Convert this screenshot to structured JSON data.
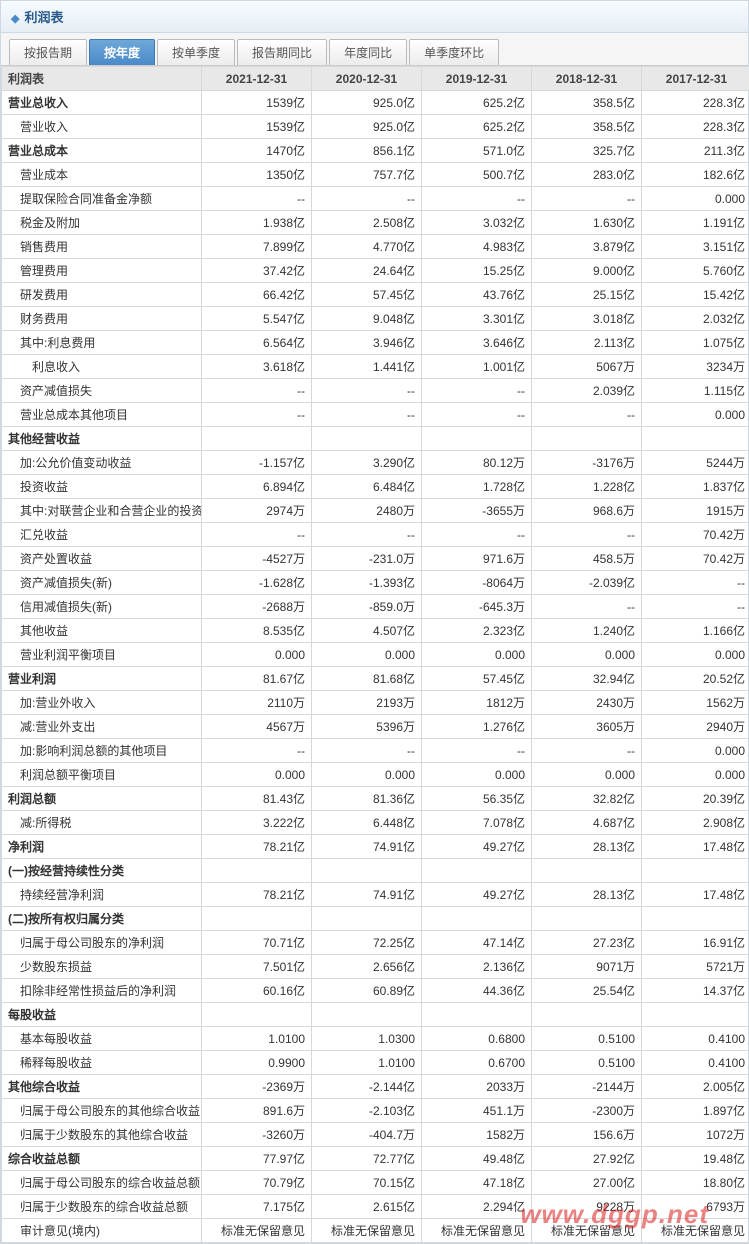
{
  "panel": {
    "title": "利润表"
  },
  "tabs": [
    {
      "label": "按报告期",
      "active": false
    },
    {
      "label": "按年度",
      "active": true
    },
    {
      "label": "按单季度",
      "active": false
    },
    {
      "label": "报告期同比",
      "active": false
    },
    {
      "label": "年度同比",
      "active": false
    },
    {
      "label": "单季度环比",
      "active": false
    }
  ],
  "columns": [
    "利润表",
    "2021-12-31",
    "2020-12-31",
    "2019-12-31",
    "2018-12-31",
    "2017-12-31"
  ],
  "rows": [
    {
      "label": "营业总收入",
      "section": true,
      "v": [
        "1539亿",
        "925.0亿",
        "625.2亿",
        "358.5亿",
        "228.3亿"
      ]
    },
    {
      "label": "营业收入",
      "indent": 1,
      "v": [
        "1539亿",
        "925.0亿",
        "625.2亿",
        "358.5亿",
        "228.3亿"
      ]
    },
    {
      "label": "营业总成本",
      "section": true,
      "v": [
        "1470亿",
        "856.1亿",
        "571.0亿",
        "325.7亿",
        "211.3亿"
      ]
    },
    {
      "label": "营业成本",
      "indent": 1,
      "v": [
        "1350亿",
        "757.7亿",
        "500.7亿",
        "283.0亿",
        "182.6亿"
      ]
    },
    {
      "label": "提取保险合同准备金净额",
      "indent": 1,
      "v": [
        "--",
        "--",
        "--",
        "--",
        "0.000"
      ]
    },
    {
      "label": "税金及附加",
      "indent": 1,
      "v": [
        "1.938亿",
        "2.508亿",
        "3.032亿",
        "1.630亿",
        "1.191亿"
      ]
    },
    {
      "label": "销售费用",
      "indent": 1,
      "v": [
        "7.899亿",
        "4.770亿",
        "4.983亿",
        "3.879亿",
        "3.151亿"
      ]
    },
    {
      "label": "管理费用",
      "indent": 1,
      "v": [
        "37.42亿",
        "24.64亿",
        "15.25亿",
        "9.000亿",
        "5.760亿"
      ]
    },
    {
      "label": "研发费用",
      "indent": 1,
      "v": [
        "66.42亿",
        "57.45亿",
        "43.76亿",
        "25.15亿",
        "15.42亿"
      ]
    },
    {
      "label": "财务费用",
      "indent": 1,
      "v": [
        "5.547亿",
        "9.048亿",
        "3.301亿",
        "3.018亿",
        "2.032亿"
      ]
    },
    {
      "label": "其中:利息费用",
      "indent": 1,
      "v": [
        "6.564亿",
        "3.946亿",
        "3.646亿",
        "2.113亿",
        "1.075亿"
      ]
    },
    {
      "label": "利息收入",
      "indent": 2,
      "v": [
        "3.618亿",
        "1.441亿",
        "1.001亿",
        "5067万",
        "3234万"
      ]
    },
    {
      "label": "资产减值损失",
      "indent": 1,
      "v": [
        "--",
        "--",
        "--",
        "2.039亿",
        "1.115亿"
      ]
    },
    {
      "label": "营业总成本其他项目",
      "indent": 1,
      "v": [
        "--",
        "--",
        "--",
        "--",
        "0.000"
      ]
    },
    {
      "label": "其他经营收益",
      "section": true,
      "v": [
        "",
        "",
        "",
        "",
        ""
      ]
    },
    {
      "label": "加:公允价值变动收益",
      "indent": 1,
      "v": [
        "-1.157亿",
        "3.290亿",
        "80.12万",
        "-3176万",
        "5244万"
      ]
    },
    {
      "label": "投资收益",
      "indent": 1,
      "v": [
        "6.894亿",
        "6.484亿",
        "1.728亿",
        "1.228亿",
        "1.837亿"
      ]
    },
    {
      "label": "其中:对联营企业和合营企业的投资收益",
      "indent": 1,
      "v": [
        "2974万",
        "2480万",
        "-3655万",
        "968.6万",
        "1915万"
      ]
    },
    {
      "label": "汇兑收益",
      "indent": 1,
      "v": [
        "--",
        "--",
        "--",
        "--",
        "70.42万"
      ]
    },
    {
      "label": "资产处置收益",
      "indent": 1,
      "v": [
        "-4527万",
        "-231.0万",
        "971.6万",
        "458.5万",
        "70.42万"
      ]
    },
    {
      "label": "资产减值损失(新)",
      "indent": 1,
      "v": [
        "-1.628亿",
        "-1.393亿",
        "-8064万",
        "-2.039亿",
        "--"
      ]
    },
    {
      "label": "信用减值损失(新)",
      "indent": 1,
      "v": [
        "-2688万",
        "-859.0万",
        "-645.3万",
        "--",
        "--"
      ]
    },
    {
      "label": "其他收益",
      "indent": 1,
      "v": [
        "8.535亿",
        "4.507亿",
        "2.323亿",
        "1.240亿",
        "1.166亿"
      ]
    },
    {
      "label": "营业利润平衡项目",
      "indent": 1,
      "v": [
        "0.000",
        "0.000",
        "0.000",
        "0.000",
        "0.000"
      ]
    },
    {
      "label": "营业利润",
      "section": true,
      "v": [
        "81.67亿",
        "81.68亿",
        "57.45亿",
        "32.94亿",
        "20.52亿"
      ]
    },
    {
      "label": "加:营业外收入",
      "indent": 1,
      "v": [
        "2110万",
        "2193万",
        "1812万",
        "2430万",
        "1562万"
      ]
    },
    {
      "label": "减:营业外支出",
      "indent": 1,
      "v": [
        "4567万",
        "5396万",
        "1.276亿",
        "3605万",
        "2940万"
      ]
    },
    {
      "label": "加:影响利润总额的其他项目",
      "indent": 1,
      "v": [
        "--",
        "--",
        "--",
        "--",
        "0.000"
      ]
    },
    {
      "label": "利润总额平衡项目",
      "indent": 1,
      "v": [
        "0.000",
        "0.000",
        "0.000",
        "0.000",
        "0.000"
      ]
    },
    {
      "label": "利润总额",
      "section": true,
      "v": [
        "81.43亿",
        "81.36亿",
        "56.35亿",
        "32.82亿",
        "20.39亿"
      ]
    },
    {
      "label": "减:所得税",
      "indent": 1,
      "v": [
        "3.222亿",
        "6.448亿",
        "7.078亿",
        "4.687亿",
        "2.908亿"
      ]
    },
    {
      "label": "净利润",
      "section": true,
      "v": [
        "78.21亿",
        "74.91亿",
        "49.27亿",
        "28.13亿",
        "17.48亿"
      ]
    },
    {
      "label": "(一)按经营持续性分类",
      "section": true,
      "v": [
        "",
        "",
        "",
        "",
        ""
      ]
    },
    {
      "label": "持续经营净利润",
      "indent": 1,
      "v": [
        "78.21亿",
        "74.91亿",
        "49.27亿",
        "28.13亿",
        "17.48亿"
      ]
    },
    {
      "label": "(二)按所有权归属分类",
      "section": true,
      "v": [
        "",
        "",
        "",
        "",
        ""
      ]
    },
    {
      "label": "归属于母公司股东的净利润",
      "indent": 1,
      "v": [
        "70.71亿",
        "72.25亿",
        "47.14亿",
        "27.23亿",
        "16.91亿"
      ]
    },
    {
      "label": "少数股东损益",
      "indent": 1,
      "v": [
        "7.501亿",
        "2.656亿",
        "2.136亿",
        "9071万",
        "5721万"
      ]
    },
    {
      "label": "扣除非经常性损益后的净利润",
      "indent": 1,
      "v": [
        "60.16亿",
        "60.89亿",
        "44.36亿",
        "25.54亿",
        "14.37亿"
      ]
    },
    {
      "label": "每股收益",
      "section": true,
      "v": [
        "",
        "",
        "",
        "",
        ""
      ]
    },
    {
      "label": "基本每股收益",
      "indent": 1,
      "v": [
        "1.0100",
        "1.0300",
        "0.6800",
        "0.5100",
        "0.4100"
      ]
    },
    {
      "label": "稀释每股收益",
      "indent": 1,
      "v": [
        "0.9900",
        "1.0100",
        "0.6700",
        "0.5100",
        "0.4100"
      ]
    },
    {
      "label": "其他综合收益",
      "section": true,
      "v": [
        "-2369万",
        "-2.144亿",
        "2033万",
        "-2144万",
        "2.005亿"
      ]
    },
    {
      "label": "归属于母公司股东的其他综合收益",
      "indent": 1,
      "v": [
        "891.6万",
        "-2.103亿",
        "451.1万",
        "-2300万",
        "1.897亿"
      ]
    },
    {
      "label": "归属于少数股东的其他综合收益",
      "indent": 1,
      "v": [
        "-3260万",
        "-404.7万",
        "1582万",
        "156.6万",
        "1072万"
      ]
    },
    {
      "label": "综合收益总额",
      "section": true,
      "v": [
        "77.97亿",
        "72.77亿",
        "49.48亿",
        "27.92亿",
        "19.48亿"
      ]
    },
    {
      "label": "归属于母公司股东的综合收益总额",
      "indent": 1,
      "v": [
        "70.79亿",
        "70.15亿",
        "47.18亿",
        "27.00亿",
        "18.80亿"
      ]
    },
    {
      "label": "归属于少数股东的综合收益总额",
      "indent": 1,
      "v": [
        "7.175亿",
        "2.615亿",
        "2.294亿",
        "9228万",
        "6793万"
      ]
    },
    {
      "label": "审计意见(境内)",
      "indent": 1,
      "v": [
        "标准无保留意见",
        "标准无保留意见",
        "标准无保留意见",
        "标准无保留意见",
        "标准无保留意见"
      ]
    }
  ],
  "watermark": "www.dggp.net"
}
